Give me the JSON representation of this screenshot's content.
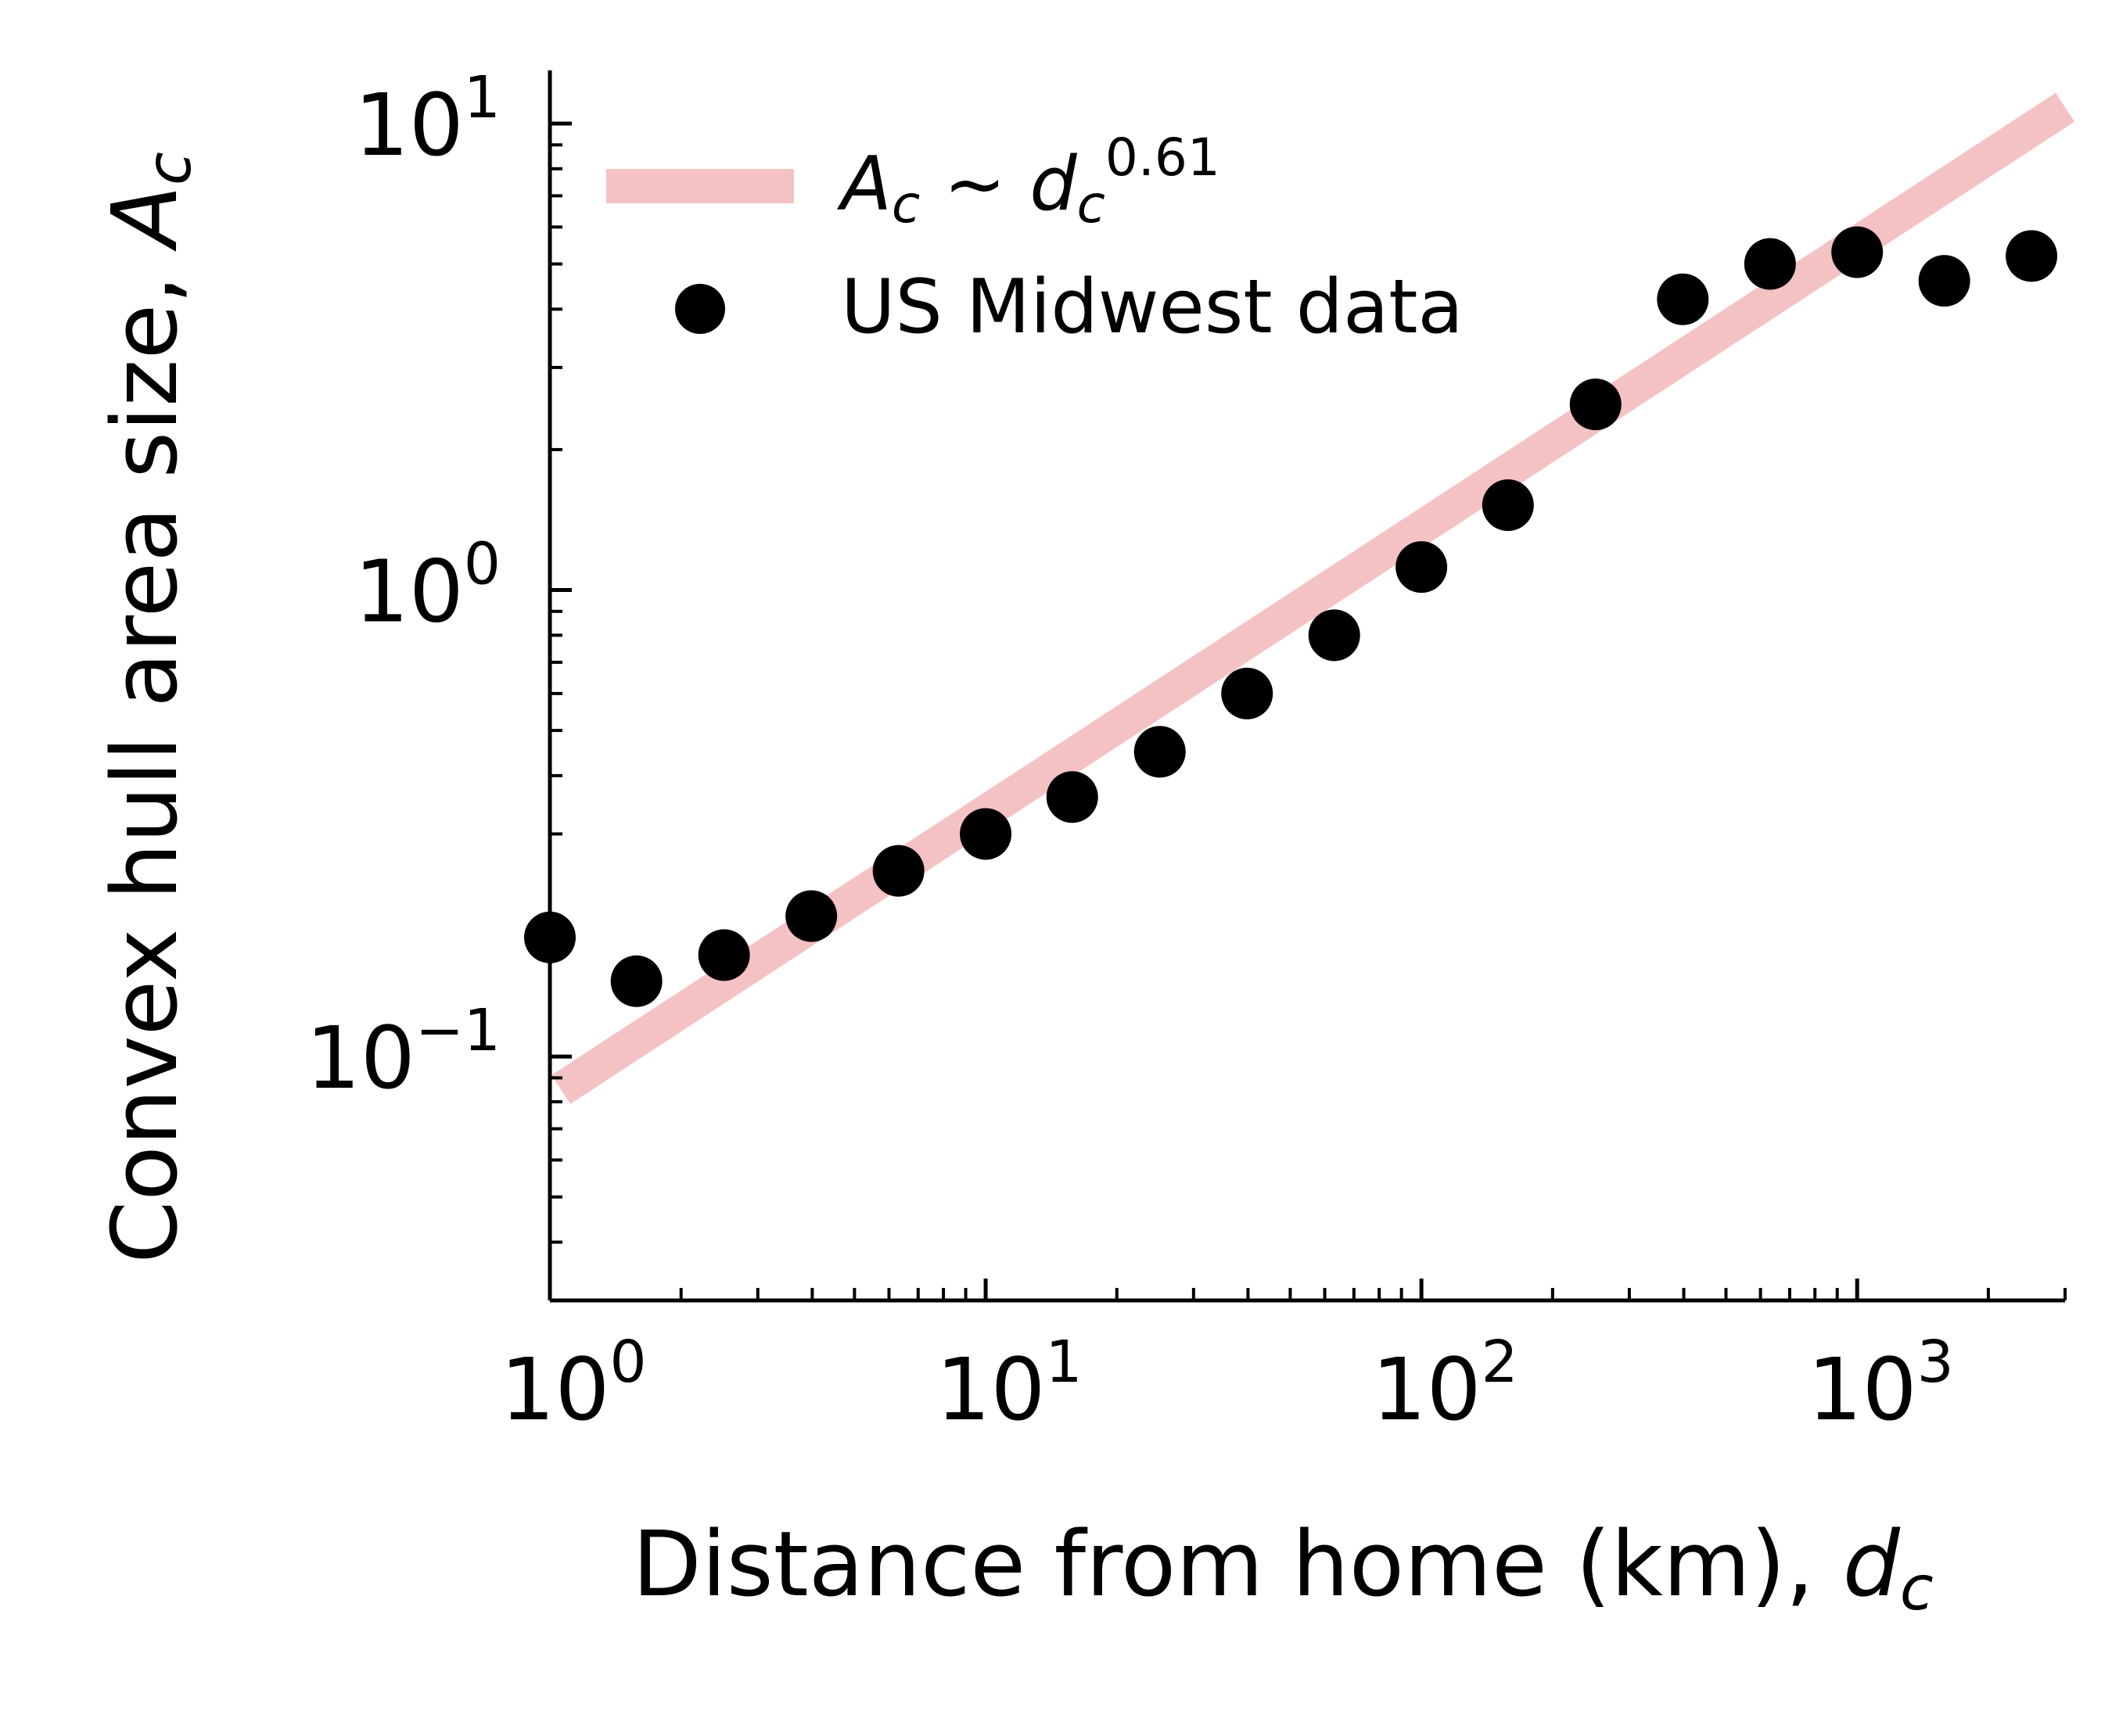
{
  "chart_data": {
    "type": "scatter",
    "xscale": "log",
    "yscale": "log",
    "xlim": [
      1,
      3000
    ],
    "ylim": [
      0.03,
      13
    ],
    "xlabel": "Distance from home (km),",
    "xlabel_symbol": "d",
    "xlabel_symbol_sub": "c",
    "ylabel": "Convex hull area size,",
    "ylabel_symbol": "A",
    "ylabel_symbol_sub": "c",
    "x_ticks": [
      {
        "value": 1,
        "base": "10",
        "exp": "0"
      },
      {
        "value": 10,
        "base": "10",
        "exp": "1"
      },
      {
        "value": 100,
        "base": "10",
        "exp": "2"
      },
      {
        "value": 1000,
        "base": "10",
        "exp": "3"
      }
    ],
    "y_ticks": [
      {
        "value": 0.1,
        "base": "10",
        "exp": "−1"
      },
      {
        "value": 1,
        "base": "10",
        "exp": "0"
      },
      {
        "value": 10,
        "base": "10",
        "exp": "1"
      }
    ],
    "grid": false,
    "legend_position": "top-left",
    "series": [
      {
        "name": "US Midwest data",
        "kind": "scatter",
        "color": "#000000",
        "x": [
          1.0,
          1.58,
          2.51,
          3.98,
          6.31,
          10.0,
          15.8,
          25.1,
          39.8,
          63.1,
          100,
          158,
          251,
          398,
          631,
          1000,
          1585,
          2512
        ],
        "y": [
          0.18,
          0.145,
          0.165,
          0.2,
          0.25,
          0.3,
          0.36,
          0.45,
          0.6,
          0.8,
          1.12,
          1.52,
          2.5,
          4.2,
          5.0,
          5.3,
          4.6,
          5.2
        ]
      },
      {
        "kind": "line",
        "color": "#f5c2c4",
        "legend": {
          "lhs": "A",
          "lhs_sub": "c",
          "rel": "~",
          "rhs": "d",
          "rhs_sub": "c",
          "exp": "0.61"
        },
        "exponent": 0.61,
        "coefficient": 0.082,
        "x_range": [
          1.06,
          3000
        ]
      }
    ]
  }
}
